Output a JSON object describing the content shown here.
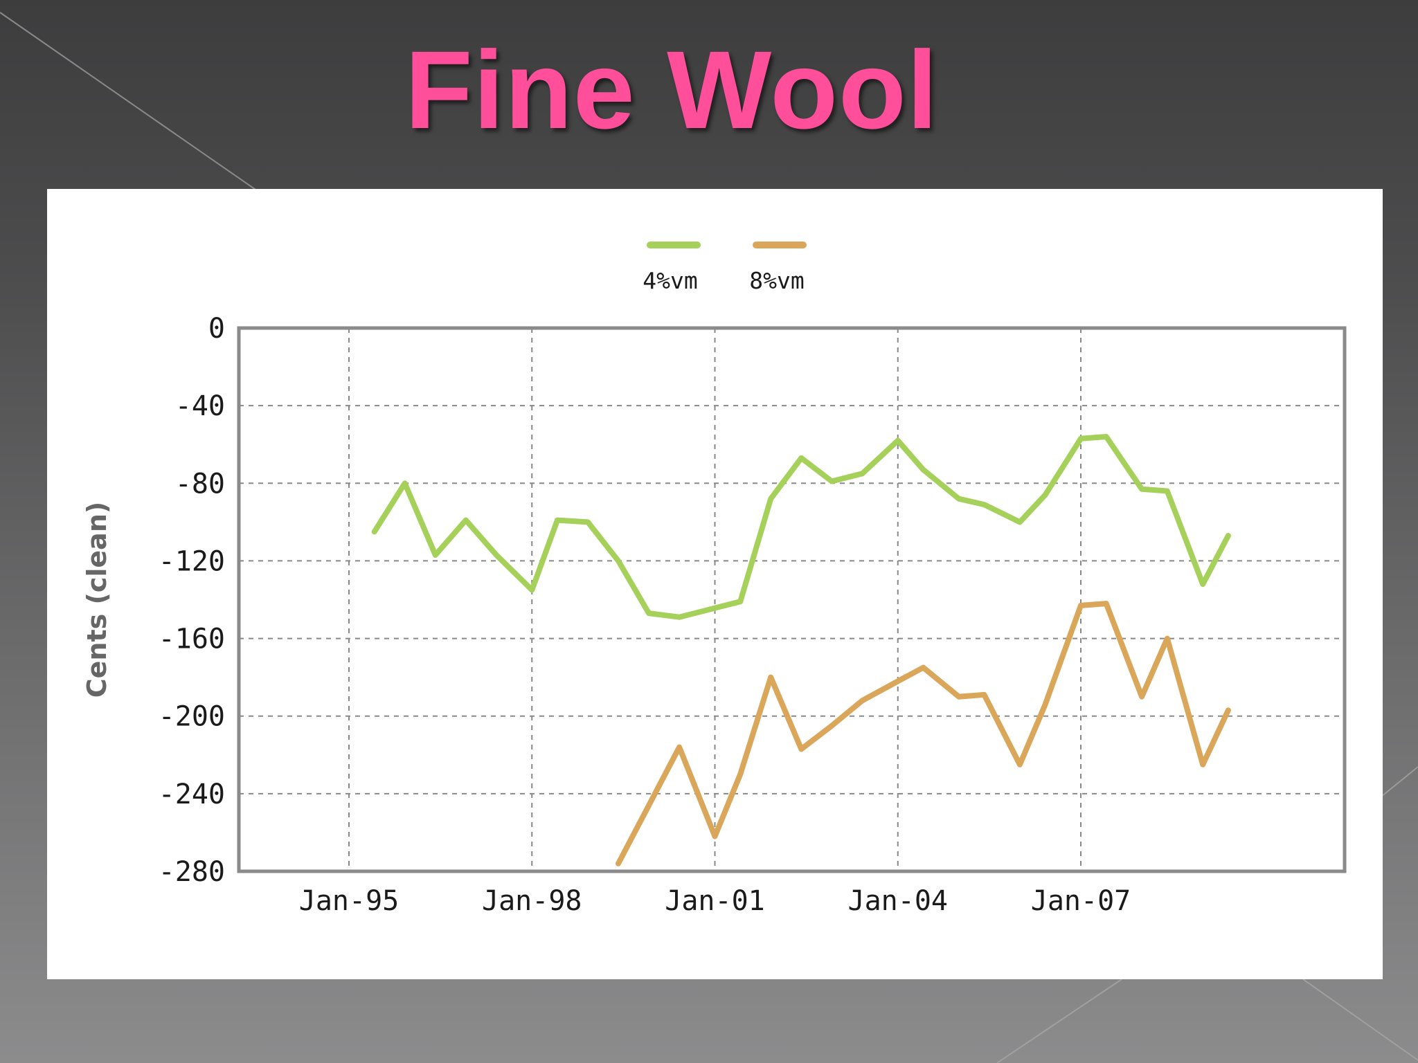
{
  "slide": {
    "title": "Fine Wool"
  },
  "colors": {
    "title": "#ff4f9a",
    "series_4vm": "#a5d15a",
    "series_8vm": "#d9a65a",
    "grid": "#888888",
    "plot_border": "#8a8a8a"
  },
  "chart_data": {
    "type": "line",
    "title": "",
    "xlabel": "",
    "ylabel": "Cents (clean)",
    "ylim": [
      -280,
      0
    ],
    "yticks": [
      0,
      -40,
      -80,
      -120,
      -160,
      -200,
      -240,
      -280
    ],
    "xticks": [
      "Jan-95",
      "Jan-98",
      "Jan-01",
      "Jan-04",
      "Jan-07"
    ],
    "grid": true,
    "legend_position": "top-center",
    "series": [
      {
        "name": "4%vm",
        "color": "#a5d15a",
        "x": [
          "1995-06",
          "1995-12",
          "1996-06",
          "1996-12",
          "1997-06",
          "1998-01",
          "1998-06",
          "1998-12",
          "1999-06",
          "1999-12",
          "2000-06",
          "2000-12",
          "2001-06",
          "2001-12",
          "2002-06",
          "2002-12",
          "2003-06",
          "2004-01",
          "2004-06",
          "2005-01",
          "2005-06",
          "2006-01",
          "2006-06",
          "2007-01",
          "2007-06",
          "2008-01",
          "2008-06",
          "2009-01",
          "2009-06"
        ],
        "values": [
          -105,
          -80,
          -117,
          -99,
          -117,
          -135,
          -99,
          -100,
          -120,
          -147,
          -149,
          -145,
          -141,
          -88,
          -67,
          -79,
          -75,
          -58,
          -73,
          -88,
          -91,
          -100,
          -86,
          -57,
          -56,
          -83,
          -84,
          -132,
          -107
        ]
      },
      {
        "name": "8%vm",
        "color": "#d9a65a",
        "x": [
          "1999-06",
          "1999-12",
          "2000-06",
          "2001-01",
          "2001-06",
          "2001-12",
          "2002-06",
          "2002-12",
          "2003-06",
          "2004-01",
          "2004-06",
          "2005-01",
          "2005-06",
          "2006-01",
          "2006-06",
          "2007-01",
          "2007-06",
          "2008-01",
          "2008-06",
          "2009-01",
          "2009-06"
        ],
        "values": [
          -276,
          -246,
          -216,
          -262,
          -230,
          -180,
          -217,
          -205,
          -192,
          -182,
          -175,
          -190,
          -189,
          -225,
          -194,
          -143,
          -142,
          -190,
          -160,
          -225,
          -197
        ]
      }
    ]
  }
}
